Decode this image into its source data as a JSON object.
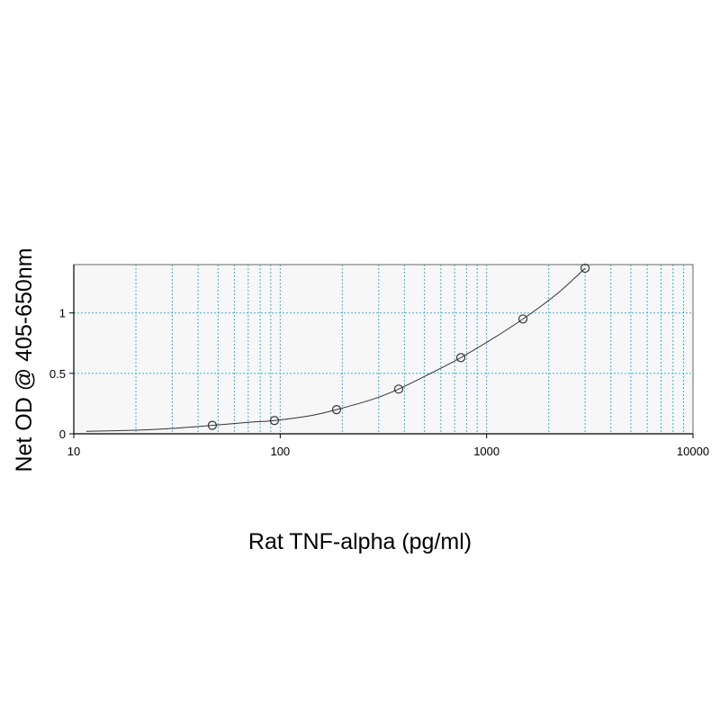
{
  "chart_data": {
    "type": "scatter",
    "xlabel": "Rat TNF-alpha (pg/ml)",
    "ylabel": "Net OD @ 405-650nm",
    "x_scale": "log",
    "xlim": [
      10,
      10000
    ],
    "ylim": [
      0,
      1.4
    ],
    "grid": true,
    "x_ticks": [
      10,
      100,
      1000,
      10000
    ],
    "x_tick_labels": [
      "10",
      "100",
      "1000",
      "10000"
    ],
    "y_ticks": [
      0,
      0.5,
      1
    ],
    "y_tick_labels": [
      "0",
      "0.5",
      "1"
    ],
    "series": [
      {
        "style": "markers",
        "x": [
          46.9,
          93.8,
          187.5,
          375,
          750,
          1500,
          3000
        ],
        "y": [
          0.07,
          0.11,
          0.2,
          0.37,
          0.63,
          0.95,
          1.37
        ]
      },
      {
        "style": "fitted-curve",
        "x": [
          11.5,
          20,
          30,
          46.9,
          70,
          93.8,
          140,
          187.5,
          280,
          375,
          550,
          750,
          1100,
          1500,
          2200,
          3000
        ],
        "y": [
          0.02,
          0.03,
          0.045,
          0.07,
          0.095,
          0.11,
          0.15,
          0.2,
          0.285,
          0.37,
          0.51,
          0.63,
          0.8,
          0.95,
          1.16,
          1.37
        ]
      }
    ],
    "colors": {
      "grid": "#33b5d8",
      "plot_bg": "#f7f7f7",
      "curve": "#333333",
      "marker": "#333333"
    }
  }
}
